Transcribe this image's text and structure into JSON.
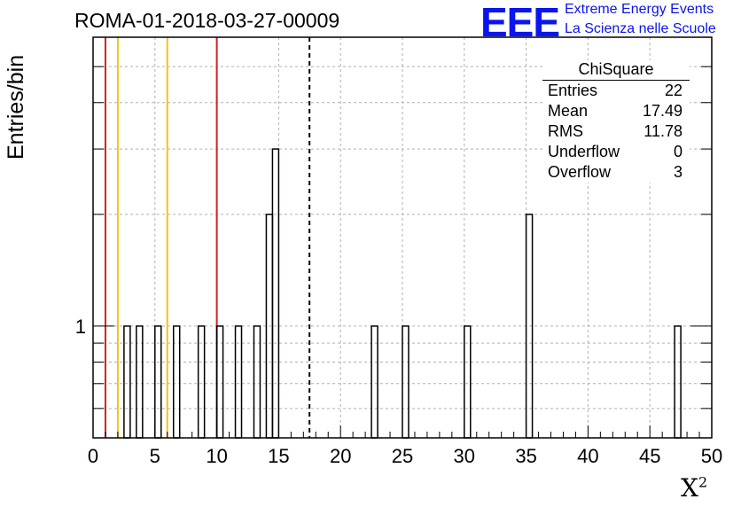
{
  "header": {
    "run_id": "ROMA-01-2018-03-27-00009",
    "logo_text": "EEE",
    "logo_line1": "Extreme Energy Events",
    "logo_line2": "La Scienza nelle Scuole"
  },
  "stats_box": {
    "title": "ChiSquare",
    "rows": [
      {
        "label": "Entries",
        "value": "22"
      },
      {
        "label": "Mean",
        "value": "17.49"
      },
      {
        "label": "RMS",
        "value": "11.78"
      },
      {
        "label": "Underflow",
        "value": "0"
      },
      {
        "label": "Overflow",
        "value": "3"
      }
    ]
  },
  "chart_data": {
    "type": "bar",
    "title": "ROMA-01-2018-03-27-00009",
    "xlabel": "X",
    "xlabel_sup": "2",
    "ylabel": "Entries/bin",
    "xlim": [
      0,
      50
    ],
    "ylim": [
      0.5,
      6
    ],
    "y_scale": "log",
    "grid": true,
    "bin_width": 0.5,
    "x_ticks": [
      0,
      5,
      10,
      15,
      20,
      25,
      30,
      35,
      40,
      45,
      50
    ],
    "y_tick_labels": [
      {
        "value": 1,
        "label": "1"
      }
    ],
    "bins": [
      {
        "x": 2.5,
        "count": 1
      },
      {
        "x": 3.5,
        "count": 1
      },
      {
        "x": 5.0,
        "count": 1
      },
      {
        "x": 6.5,
        "count": 1
      },
      {
        "x": 8.5,
        "count": 1
      },
      {
        "x": 10.0,
        "count": 1
      },
      {
        "x": 11.5,
        "count": 1
      },
      {
        "x": 13.0,
        "count": 1
      },
      {
        "x": 14.0,
        "count": 2
      },
      {
        "x": 14.5,
        "count": 3
      },
      {
        "x": 22.5,
        "count": 1
      },
      {
        "x": 25.0,
        "count": 1
      },
      {
        "x": 30.0,
        "count": 1
      },
      {
        "x": 35.0,
        "count": 2
      },
      {
        "x": 47.0,
        "count": 1
      }
    ],
    "vertical_lines": [
      {
        "x": 1.0,
        "color": "#d42020",
        "style": "solid"
      },
      {
        "x": 2.0,
        "color": "#f2c418",
        "style": "solid"
      },
      {
        "x": 6.0,
        "color": "#f2c418",
        "style": "solid"
      },
      {
        "x": 10.0,
        "color": "#d42020",
        "style": "solid"
      },
      {
        "x": 17.49,
        "color": "#000000",
        "style": "dashed"
      }
    ]
  }
}
